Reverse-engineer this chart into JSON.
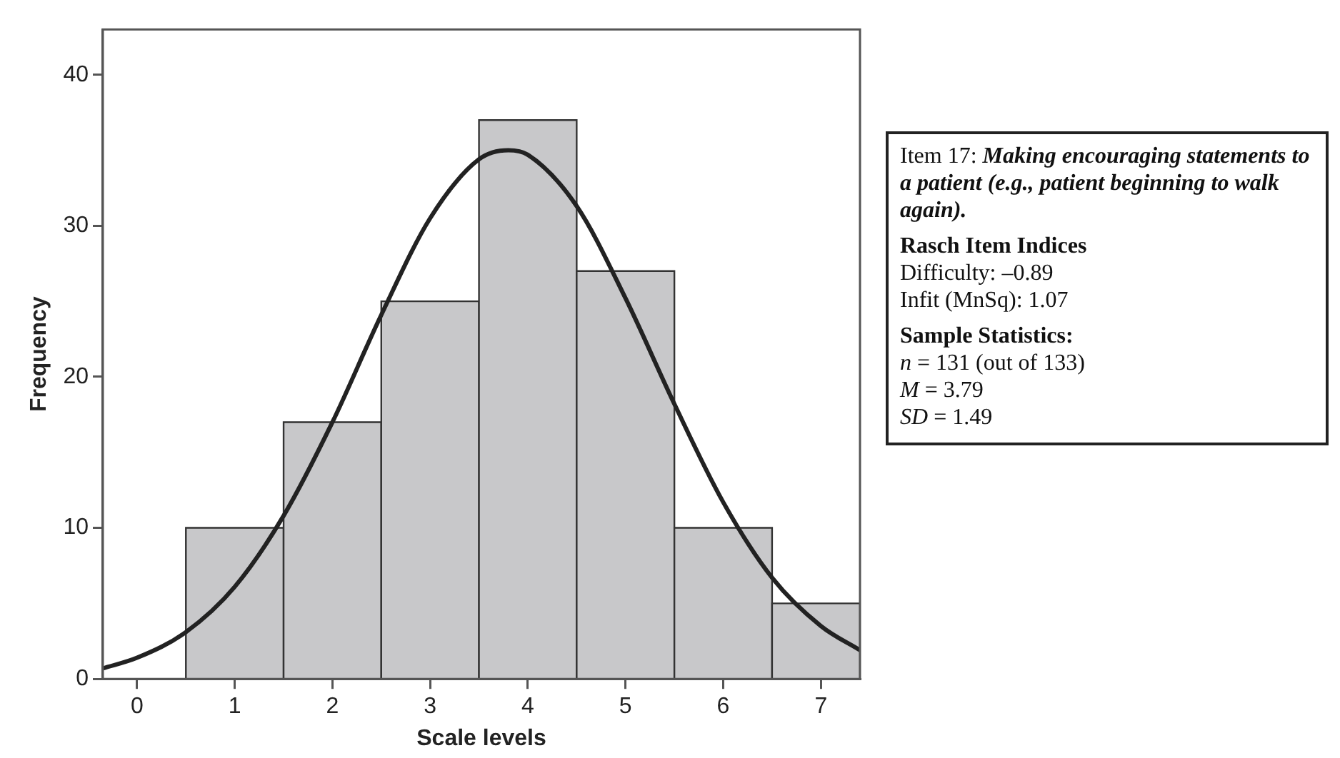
{
  "chart_data": {
    "type": "histogram",
    "xlabel": "Scale levels",
    "ylabel": "Frequency",
    "bins": [
      0.5,
      1.5,
      2.5,
      3.5,
      4.5,
      5.5,
      6.5,
      7.4
    ],
    "values": [
      10,
      17,
      25,
      37,
      27,
      10,
      5
    ],
    "color": "#c8c8ca",
    "xlim": [
      -0.35,
      7.4
    ],
    "xticks": [
      0,
      1,
      2,
      3,
      4,
      5,
      6,
      7
    ],
    "ylim": [
      0,
      43
    ],
    "yticks": [
      0,
      10,
      20,
      30,
      40
    ],
    "grid": false,
    "legend": false,
    "series": [
      {
        "type": "line",
        "color": "#222222",
        "marker": "none",
        "line_style": "solid",
        "x": [
          -0.35,
          0,
          0.5,
          1,
          1.5,
          2,
          2.5,
          3,
          3.5,
          3.8,
          4,
          4.5,
          5,
          5.5,
          6,
          6.5,
          7,
          7.4
        ],
        "values": [
          0.7,
          1.4,
          3.1,
          6.1,
          10.8,
          17,
          24.1,
          30.5,
          34.4,
          35,
          34.7,
          31.3,
          25.2,
          18.2,
          11.7,
          6.7,
          3.5,
          1.9
        ]
      }
    ],
    "annotations": [
      "Item 17:",
      "Making encouraging statements to a patient (e.g., patient beginning to walk again).",
      "Rasch Item Indices",
      "Difficulty: –0.89",
      "Infit (MnSq): 1.07",
      "Sample Statistics:",
      "n = 131 (out of 133)",
      "M = 3.79",
      "SD = 1.49"
    ]
  }
}
